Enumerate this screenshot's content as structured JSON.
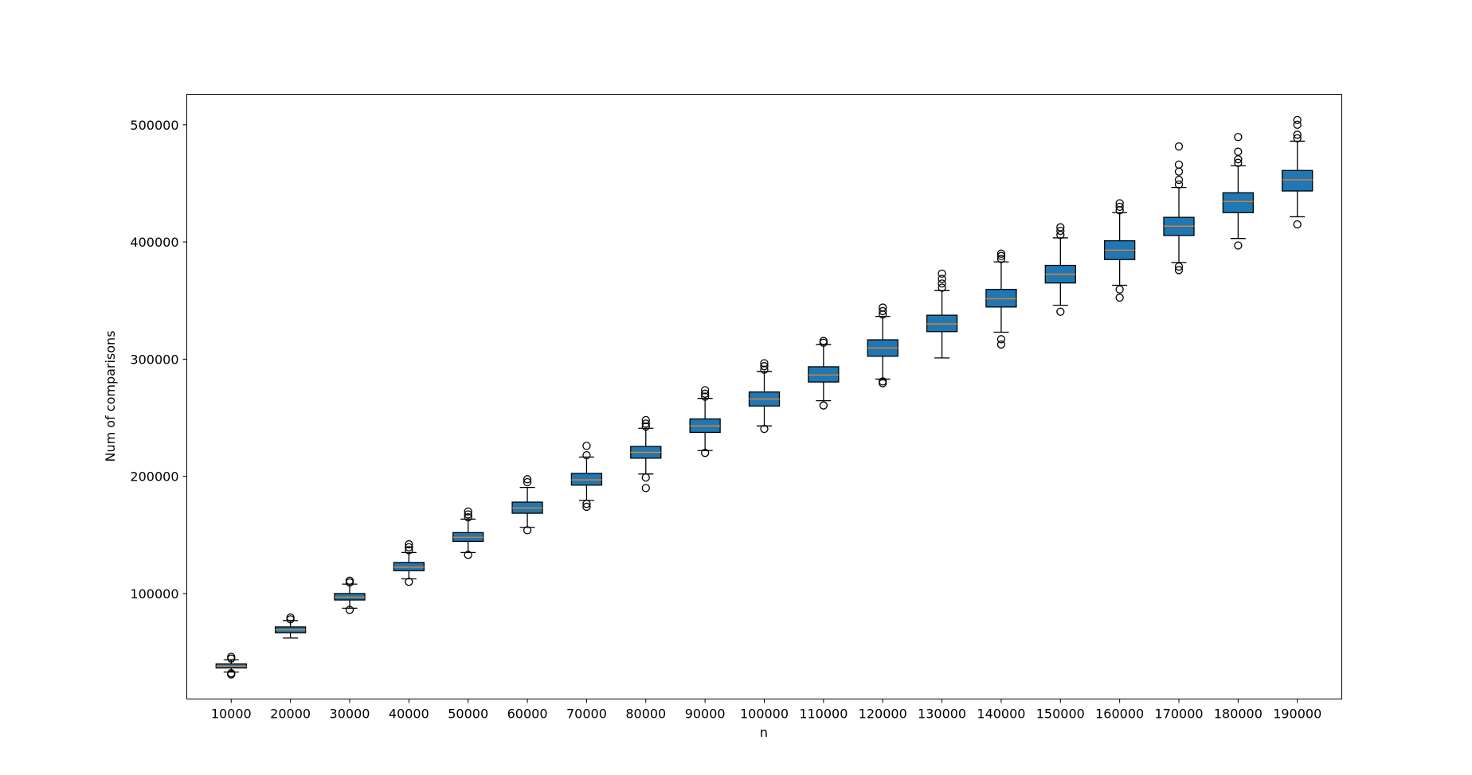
{
  "chart_data": {
    "type": "box",
    "title": "",
    "xlabel": "n",
    "ylabel": "Num of comparisons",
    "ylim": [
      10000,
      526000
    ],
    "yticks": [
      100000,
      200000,
      300000,
      400000,
      500000
    ],
    "ytick_labels": [
      "100000",
      "200000",
      "300000",
      "400000",
      "500000"
    ],
    "grid": false,
    "box_color": "#1f77b4",
    "median_color": "#ff7f0e",
    "edge_color": "#000000",
    "categories": [
      "10000",
      "20000",
      "30000",
      "40000",
      "50000",
      "60000",
      "70000",
      "80000",
      "90000",
      "100000",
      "110000",
      "120000",
      "130000",
      "140000",
      "150000",
      "160000",
      "170000",
      "180000",
      "190000"
    ],
    "boxes": [
      {
        "min": 33000,
        "q1": 36500,
        "median": 38000,
        "q3": 40000,
        "max": 43500,
        "fliers": [
          31000,
          32000,
          44500,
          46000
        ]
      },
      {
        "min": 62000,
        "q1": 66500,
        "median": 69000,
        "q3": 71500,
        "max": 77000,
        "fliers": [
          78000,
          79500
        ]
      },
      {
        "min": 87500,
        "q1": 94500,
        "median": 97000,
        "q3": 100000,
        "max": 108000,
        "fliers": [
          86000,
          109500,
          111000
        ]
      },
      {
        "min": 112500,
        "q1": 119500,
        "median": 122500,
        "q3": 126500,
        "max": 135000,
        "fliers": [
          110000,
          137000,
          139500,
          142000
        ]
      },
      {
        "min": 135000,
        "q1": 144500,
        "median": 148000,
        "q3": 152000,
        "max": 163500,
        "fliers": [
          133000,
          165000,
          167500,
          170000
        ]
      },
      {
        "min": 156500,
        "q1": 168500,
        "median": 173000,
        "q3": 178000,
        "max": 190500,
        "fliers": [
          154000,
          195000,
          197500
        ]
      },
      {
        "min": 179500,
        "q1": 192500,
        "median": 197000,
        "q3": 202500,
        "max": 216500,
        "fliers": [
          174000,
          176500,
          218000,
          226000
        ]
      },
      {
        "min": 202000,
        "q1": 215500,
        "median": 220500,
        "q3": 225500,
        "max": 241000,
        "fliers": [
          190000,
          199000,
          242500,
          245000,
          248000
        ]
      },
      {
        "min": 222000,
        "q1": 237500,
        "median": 243000,
        "q3": 249000,
        "max": 266500,
        "fliers": [
          220000,
          268000,
          270500,
          273500
        ]
      },
      {
        "min": 243000,
        "q1": 260000,
        "median": 266000,
        "q3": 272000,
        "max": 289500,
        "fliers": [
          240500,
          291000,
          294000,
          296500
        ]
      },
      {
        "min": 264500,
        "q1": 280500,
        "median": 286500,
        "q3": 293500,
        "max": 312500,
        "fliers": [
          260500,
          314000,
          315500
        ]
      },
      {
        "min": 283000,
        "q1": 302500,
        "median": 309500,
        "q3": 316500,
        "max": 336500,
        "fliers": [
          279500,
          281000,
          338000,
          341000,
          344000
        ]
      },
      {
        "min": 301000,
        "q1": 323500,
        "median": 330000,
        "q3": 337500,
        "max": 358500,
        "fliers": [
          361000,
          364500,
          368500,
          373000
        ]
      },
      {
        "min": 323000,
        "q1": 344500,
        "median": 351500,
        "q3": 359500,
        "max": 383000,
        "fliers": [
          312500,
          317000,
          385500,
          388000,
          390000
        ]
      },
      {
        "min": 346000,
        "q1": 365000,
        "median": 372500,
        "q3": 380000,
        "max": 403500,
        "fliers": [
          340500,
          406000,
          409500,
          412500
        ]
      },
      {
        "min": 363000,
        "q1": 385000,
        "median": 393000,
        "q3": 401000,
        "max": 425000,
        "fliers": [
          352500,
          359500,
          427000,
          430000,
          433000
        ]
      },
      {
        "min": 382500,
        "q1": 405500,
        "median": 413500,
        "q3": 421000,
        "max": 446500,
        "fliers": [
          376000,
          379000,
          449000,
          453000,
          460000,
          466000,
          481500
        ]
      },
      {
        "min": 403000,
        "q1": 425000,
        "median": 434500,
        "q3": 442000,
        "max": 465000,
        "fliers": [
          397000,
          467500,
          470500,
          477000,
          489500
        ]
      },
      {
        "min": 421500,
        "q1": 443500,
        "median": 453000,
        "q3": 461000,
        "max": 486000,
        "fliers": [
          415000,
          488500,
          491500,
          500000,
          504000
        ]
      }
    ]
  }
}
